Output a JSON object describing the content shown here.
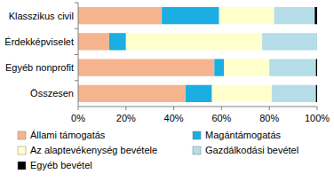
{
  "chart_data": {
    "type": "bar",
    "orientation": "horizontal",
    "stacked": true,
    "grid": false,
    "legend": "bottom",
    "categories": [
      "Klasszikus civil",
      "Érdekképviselet",
      "Egyéb nonprofit",
      "Összesen"
    ],
    "series": [
      {
        "name": "Állami támogatás",
        "color": "#f6b48e",
        "values": [
          35,
          13,
          57,
          45
        ]
      },
      {
        "name": "Magántámogatás",
        "color": "#1aaee2",
        "values": [
          24,
          7,
          4,
          11
        ]
      },
      {
        "name": "Az alaptevékenység bevétele",
        "color": "#ffffcc",
        "values": [
          23,
          57,
          19,
          25
        ]
      },
      {
        "name": "Gazdálkodási bevétel",
        "color": "#b5dde8",
        "values": [
          17,
          23,
          19.5,
          18.5
        ]
      },
      {
        "name": "Egyéb bevétel",
        "color": "#000000",
        "values": [
          1,
          0,
          0.5,
          0.5
        ]
      }
    ],
    "xlim": [
      0,
      100
    ],
    "xticks": [
      {
        "value": 0,
        "label": "0%"
      },
      {
        "value": 20,
        "label": "20%"
      },
      {
        "value": 40,
        "label": "40%"
      },
      {
        "value": 60,
        "label": "60%"
      },
      {
        "value": 80,
        "label": "80%"
      },
      {
        "value": 100,
        "label": "100%"
      }
    ]
  }
}
